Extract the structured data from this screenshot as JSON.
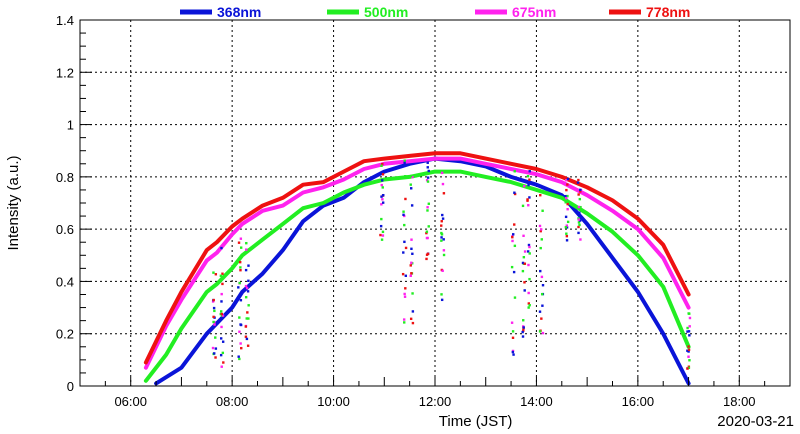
{
  "chart_data": {
    "type": "line",
    "xlabel": "Time (JST)",
    "ylabel": "Intensity (a.u.)",
    "date": "2020-03-21",
    "xlim": [
      5.0,
      19.0
    ],
    "ylim": [
      0,
      1.4
    ],
    "x_ticks": [
      6,
      8,
      10,
      12,
      14,
      16,
      18
    ],
    "x_tick_labels": [
      "06:00",
      "08:00",
      "10:00",
      "12:00",
      "14:00",
      "16:00",
      "18:00"
    ],
    "y_ticks": [
      0,
      0.2,
      0.4,
      0.6,
      0.8,
      1.0,
      1.2,
      1.4
    ],
    "y_tick_labels": [
      "0",
      "0.2",
      "0.4",
      "0.6",
      "0.8",
      "1",
      "1.2",
      "1.4"
    ],
    "grid": true,
    "legend_position": "top",
    "series": [
      {
        "name": "368nm",
        "color": "#0a14d8",
        "points": [
          [
            6.5,
            0.01
          ],
          [
            7.0,
            0.07
          ],
          [
            7.5,
            0.2
          ],
          [
            7.75,
            0.25
          ],
          [
            8.0,
            0.3
          ],
          [
            8.2,
            0.36
          ],
          [
            8.6,
            0.43
          ],
          [
            9.0,
            0.52
          ],
          [
            9.4,
            0.63
          ],
          [
            9.8,
            0.69
          ],
          [
            10.2,
            0.72
          ],
          [
            10.6,
            0.78
          ],
          [
            11.0,
            0.82
          ],
          [
            11.5,
            0.85
          ],
          [
            12.0,
            0.87
          ],
          [
            12.5,
            0.86
          ],
          [
            13.0,
            0.84
          ],
          [
            13.5,
            0.8
          ],
          [
            14.0,
            0.77
          ],
          [
            14.5,
            0.73
          ],
          [
            15.0,
            0.62
          ],
          [
            15.5,
            0.49
          ],
          [
            16.0,
            0.36
          ],
          [
            16.5,
            0.2
          ],
          [
            17.0,
            0.01
          ]
        ]
      },
      {
        "name": "500nm",
        "color": "#22ee22",
        "points": [
          [
            6.3,
            0.02
          ],
          [
            6.7,
            0.12
          ],
          [
            7.0,
            0.22
          ],
          [
            7.5,
            0.36
          ],
          [
            7.7,
            0.39
          ],
          [
            8.0,
            0.45
          ],
          [
            8.2,
            0.5
          ],
          [
            8.6,
            0.56
          ],
          [
            9.0,
            0.62
          ],
          [
            9.4,
            0.68
          ],
          [
            9.8,
            0.7
          ],
          [
            10.2,
            0.74
          ],
          [
            10.6,
            0.77
          ],
          [
            11.0,
            0.79
          ],
          [
            11.5,
            0.8
          ],
          [
            12.0,
            0.82
          ],
          [
            12.5,
            0.82
          ],
          [
            13.0,
            0.8
          ],
          [
            13.5,
            0.78
          ],
          [
            14.0,
            0.75
          ],
          [
            14.5,
            0.72
          ],
          [
            15.0,
            0.66
          ],
          [
            15.5,
            0.59
          ],
          [
            16.0,
            0.5
          ],
          [
            16.5,
            0.38
          ],
          [
            17.0,
            0.15
          ]
        ]
      },
      {
        "name": "675nm",
        "color": "#ff22ee",
        "points": [
          [
            6.3,
            0.07
          ],
          [
            6.7,
            0.23
          ],
          [
            7.0,
            0.33
          ],
          [
            7.5,
            0.48
          ],
          [
            7.7,
            0.51
          ],
          [
            8.0,
            0.58
          ],
          [
            8.2,
            0.62
          ],
          [
            8.6,
            0.67
          ],
          [
            9.0,
            0.69
          ],
          [
            9.4,
            0.74
          ],
          [
            9.8,
            0.76
          ],
          [
            10.2,
            0.79
          ],
          [
            10.6,
            0.83
          ],
          [
            11.0,
            0.85
          ],
          [
            11.5,
            0.86
          ],
          [
            12.0,
            0.87
          ],
          [
            12.5,
            0.87
          ],
          [
            13.0,
            0.85
          ],
          [
            13.5,
            0.83
          ],
          [
            14.0,
            0.81
          ],
          [
            14.5,
            0.78
          ],
          [
            15.0,
            0.73
          ],
          [
            15.5,
            0.67
          ],
          [
            16.0,
            0.6
          ],
          [
            16.5,
            0.49
          ],
          [
            17.0,
            0.3
          ]
        ]
      },
      {
        "name": "778nm",
        "color": "#ee1111",
        "points": [
          [
            6.3,
            0.09
          ],
          [
            6.7,
            0.25
          ],
          [
            7.0,
            0.36
          ],
          [
            7.5,
            0.52
          ],
          [
            7.7,
            0.55
          ],
          [
            8.0,
            0.61
          ],
          [
            8.2,
            0.64
          ],
          [
            8.6,
            0.69
          ],
          [
            9.0,
            0.72
          ],
          [
            9.4,
            0.77
          ],
          [
            9.8,
            0.78
          ],
          [
            10.2,
            0.82
          ],
          [
            10.6,
            0.86
          ],
          [
            11.0,
            0.87
          ],
          [
            11.5,
            0.88
          ],
          [
            12.0,
            0.89
          ],
          [
            12.5,
            0.89
          ],
          [
            13.0,
            0.87
          ],
          [
            13.5,
            0.85
          ],
          [
            14.0,
            0.83
          ],
          [
            14.5,
            0.8
          ],
          [
            15.0,
            0.76
          ],
          [
            15.5,
            0.71
          ],
          [
            16.0,
            0.64
          ],
          [
            16.5,
            0.54
          ],
          [
            17.0,
            0.35
          ]
        ]
      }
    ],
    "scatter_drops": [
      {
        "x": 7.65,
        "y_min": 0.08,
        "y_max": 0.45
      },
      {
        "x": 7.8,
        "y_min": 0.05,
        "y_max": 0.55
      },
      {
        "x": 8.15,
        "y_min": 0.1,
        "y_max": 0.6
      },
      {
        "x": 8.3,
        "y_min": 0.15,
        "y_max": 0.62
      },
      {
        "x": 10.95,
        "y_min": 0.55,
        "y_max": 0.88
      },
      {
        "x": 11.4,
        "y_min": 0.22,
        "y_max": 0.88
      },
      {
        "x": 11.55,
        "y_min": 0.2,
        "y_max": 0.87
      },
      {
        "x": 11.85,
        "y_min": 0.45,
        "y_max": 0.87
      },
      {
        "x": 12.15,
        "y_min": 0.3,
        "y_max": 0.88
      },
      {
        "x": 13.55,
        "y_min": 0.12,
        "y_max": 0.85
      },
      {
        "x": 13.75,
        "y_min": 0.15,
        "y_max": 0.84
      },
      {
        "x": 13.85,
        "y_min": 0.3,
        "y_max": 0.84
      },
      {
        "x": 14.1,
        "y_min": 0.2,
        "y_max": 0.83
      },
      {
        "x": 14.6,
        "y_min": 0.55,
        "y_max": 0.8
      },
      {
        "x": 14.85,
        "y_min": 0.55,
        "y_max": 0.79
      },
      {
        "x": 17.0,
        "y_min": 0.05,
        "y_max": 0.3
      }
    ]
  }
}
